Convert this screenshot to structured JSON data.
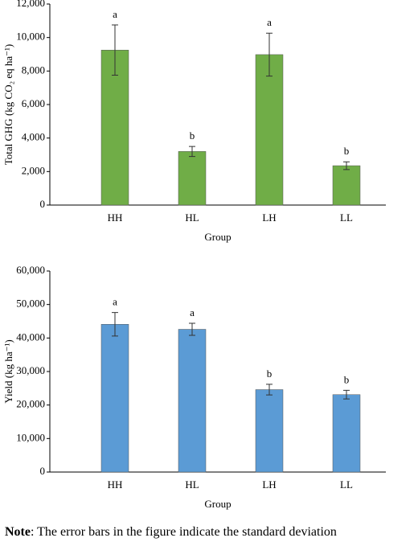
{
  "chart_data": [
    {
      "type": "bar",
      "ylabel": "Total GHG (kg CO₂ eq ha⁻¹)",
      "xlabel": "Group",
      "categories": [
        "HH",
        "HL",
        "LH",
        "LL"
      ],
      "values": [
        9250,
        3200,
        8980,
        2350
      ],
      "errors": [
        1500,
        300,
        1280,
        230
      ],
      "annotations": [
        "a",
        "b",
        "a",
        "b"
      ],
      "color": "#70ad47",
      "ylim": [
        0,
        12000
      ],
      "yticks": [
        0,
        {
          "value": 2000,
          "label": "2,000"
        },
        {
          "value": 4000,
          "label": "4,000"
        },
        {
          "value": 6000,
          "label": "6,000"
        },
        {
          "value": 8000,
          "label": "8,000"
        },
        {
          "value": 10000,
          "label": "10,000"
        },
        {
          "value": 12000,
          "label": "12,000"
        }
      ]
    },
    {
      "type": "bar",
      "ylabel": "Yield (kg ha⁻¹)",
      "xlabel": "Group",
      "categories": [
        "HH",
        "HL",
        "LH",
        "LL"
      ],
      "values": [
        44100,
        42600,
        24600,
        23100
      ],
      "errors": [
        3500,
        1800,
        1600,
        1300
      ],
      "annotations": [
        "a",
        "a",
        "b",
        "b"
      ],
      "color": "#5b9bd5",
      "ylim": [
        0,
        60000
      ],
      "yticks": [
        0,
        {
          "value": 10000,
          "label": "10,000"
        },
        {
          "value": 20000,
          "label": "20,000"
        },
        {
          "value": 30000,
          "label": "30,000"
        },
        {
          "value": 40000,
          "label": "40,000"
        },
        {
          "value": 50000,
          "label": "50,000"
        },
        {
          "value": 60000,
          "label": "60,000"
        }
      ]
    }
  ],
  "note": {
    "label": "Note",
    "text": ": The error bars in the figure indicate the standard deviation"
  }
}
